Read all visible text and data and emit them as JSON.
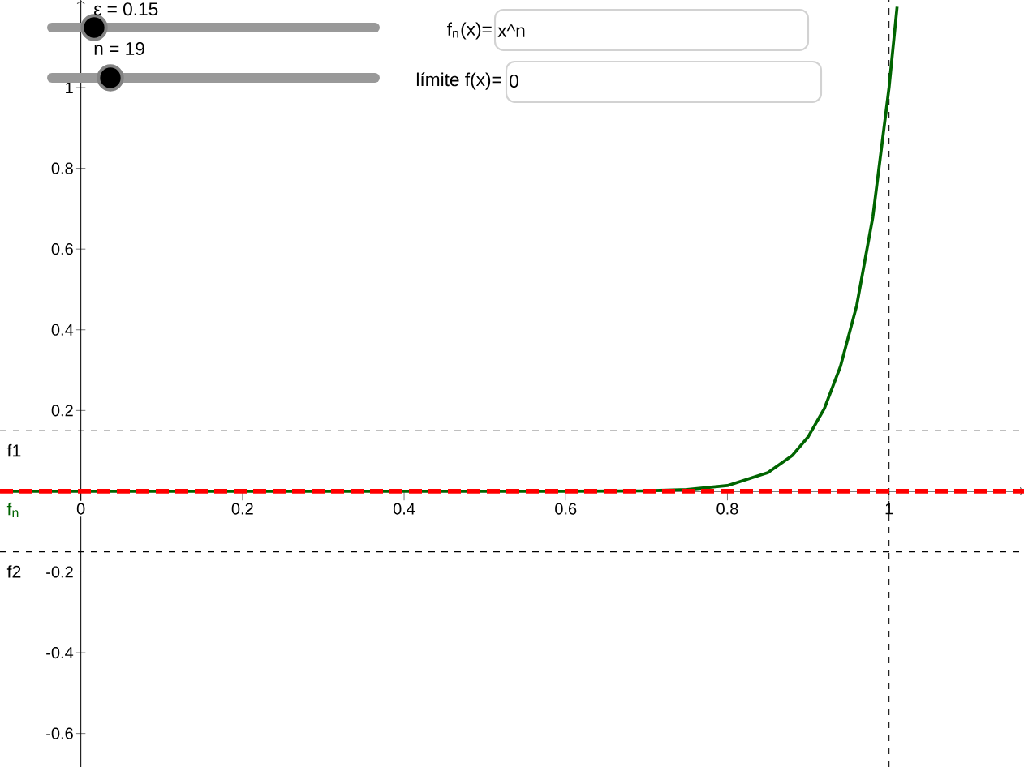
{
  "chart_data": {
    "type": "line",
    "xlim": [
      -0.1,
      1.167
    ],
    "ylim": [
      -0.683,
      1.217
    ],
    "xticks": [
      0,
      0.2,
      0.4,
      0.6,
      0.8,
      1
    ],
    "yticks": [
      -0.6,
      -0.4,
      -0.2,
      0.2,
      0.4,
      0.6,
      0.8,
      1
    ],
    "series": [
      {
        "name": "f$_{n}$",
        "color": "#006400",
        "x": [
          -0.1,
          0,
          0.3,
          0.6,
          0.7,
          0.75,
          0.8,
          0.85,
          0.88,
          0.9,
          0.92,
          0.94,
          0.96,
          0.98,
          1,
          1.01
        ],
        "values": [
          0,
          0,
          0,
          0,
          0.001,
          0.004,
          0.014,
          0.046,
          0.088,
          0.135,
          0.205,
          0.31,
          0.46,
          0.68,
          1,
          1.2
        ]
      },
      {
        "color": "#ff0000",
        "line_style": "dashed",
        "x": [
          -0.1,
          1.167
        ],
        "values": [
          0,
          0
        ]
      }
    ],
    "ref_lines": [
      {
        "axis": "y",
        "value": 0.15,
        "label": "f1",
        "color": "#000000",
        "line_style": "dashed"
      },
      {
        "axis": "y",
        "value": -0.15,
        "label": "f2",
        "color": "#000000",
        "line_style": "dashed"
      },
      {
        "axis": "x",
        "value": 1,
        "color": "#000000",
        "line_style": "dashed"
      }
    ],
    "annotations": [
      "ε = 0.15",
      "n = 19",
      "f$_{n}$(x)=",
      "x^n",
      "límite f(x)=",
      "0"
    ],
    "grid": false,
    "legend": false,
    "line_style": "solid"
  }
}
